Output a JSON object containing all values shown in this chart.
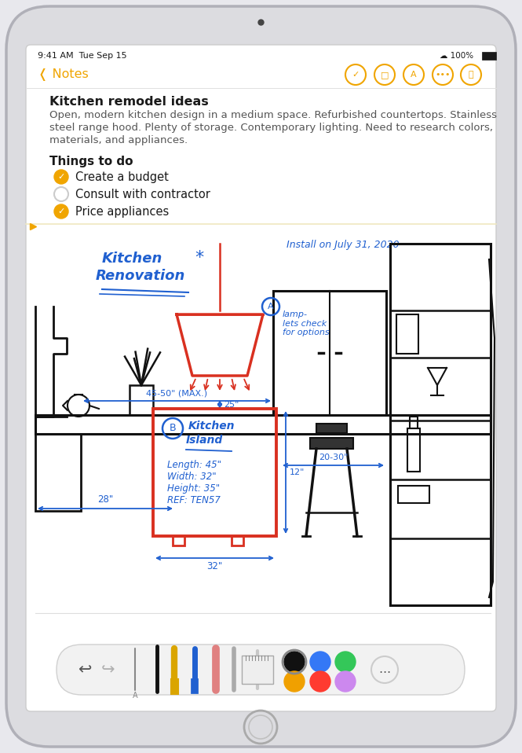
{
  "bg_color": "#e8e8ed",
  "screen_bg": "#ffffff",
  "status_time": "9:41 AM  Tue Sep 15",
  "nav_color": "#f0a500",
  "title": "Kitchen remodel ideas",
  "body_line1": "Open, modern kitchen design in a medium space. Refurbished countertops. Stainless",
  "body_line2": "steel range hood. Plenty of storage. Contemporary lighting. Need to research colors,",
  "body_line3": "materials, and appliances.",
  "section_title": "Things to do",
  "todo_items": [
    {
      "text": "Create a budget",
      "checked": true
    },
    {
      "text": "Consult with contractor",
      "checked": false
    },
    {
      "text": "Price appliances",
      "checked": true
    }
  ],
  "check_color": "#f0a500",
  "blue": "#2060d0",
  "red": "#d93020",
  "black": "#111111",
  "install_text": "Install on July 31, 2020",
  "dim_28": "28\"",
  "dim_32": "32\"",
  "dim_25": "25\"",
  "dim_4550": "45-50\" (MAX.)",
  "dim_2030": "20-30\"",
  "dim_height": "12\""
}
